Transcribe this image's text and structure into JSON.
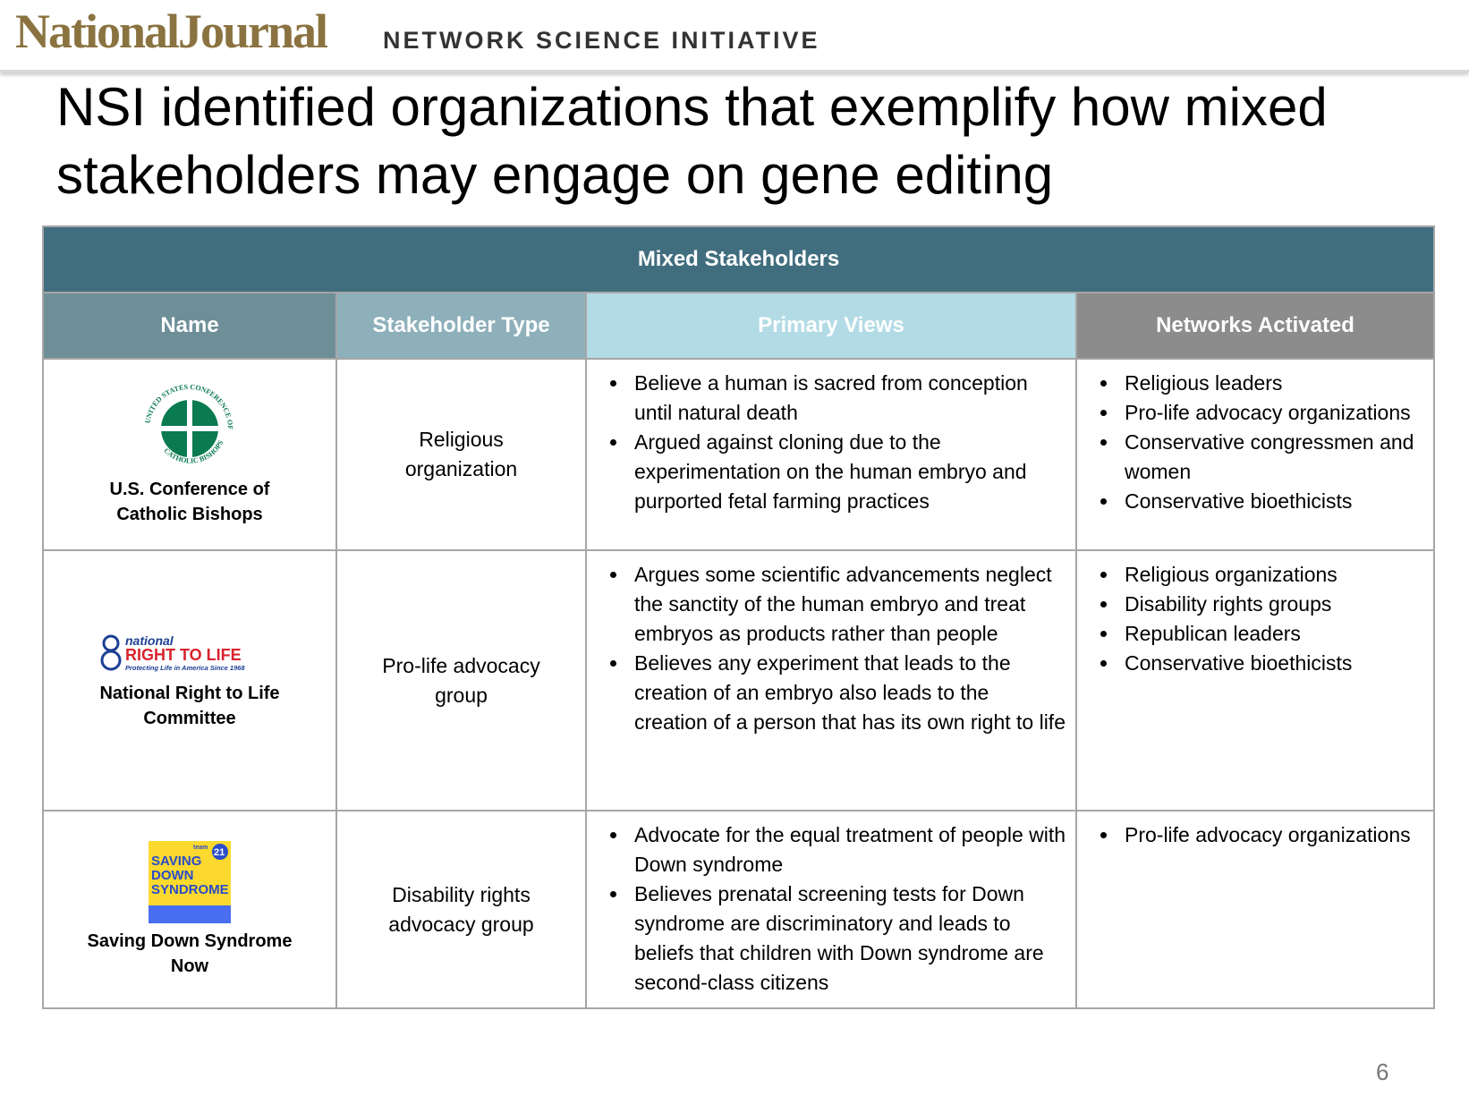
{
  "header": {
    "brand": "NationalJournal",
    "initiative": "NETWORK SCIENCE INITIATIVE"
  },
  "title": "NSI identified organizations that exemplify how mixed stakeholders may engage on gene editing",
  "table": {
    "caption": "Mixed Stakeholders",
    "columns": [
      "Name",
      "Stakeholder Type",
      "Primary Views",
      "Networks Activated"
    ],
    "rows": [
      {
        "logo": [
          "UNITED STATES CONFERENCE OF",
          "CATHOLIC BISHOPS"
        ],
        "name": "U.S. Conference of Catholic Bishops",
        "type": "Religious organization",
        "views": [
          "Believe a human is sacred from conception until natural death",
          "Argued against cloning due to the experimentation on the human embryo and purported fetal farming practices"
        ],
        "networks": [
          "Religious leaders",
          "Pro-life advocacy organizations",
          "Conservative congressmen and women",
          "Conservative bioethicists"
        ]
      },
      {
        "logo": [
          "national",
          "RIGHT TO LIFE",
          "Protecting Life in America Since 1968"
        ],
        "name": "National Right to Life Committee",
        "type": "Pro-life advocacy group",
        "views": [
          "Argues some scientific advancements neglect the sanctity of the human embryo and treat embryos as products rather than people",
          "Believes any experiment that leads to the creation of an embryo also leads to the creation of a person that has its own right to life"
        ],
        "networks": [
          "Religious organizations",
          "Disability rights groups",
          "Republican leaders",
          "Conservative bioethicists"
        ]
      },
      {
        "logo": [
          "team",
          "21",
          "SAVING",
          "DOWN",
          "SYNDROME"
        ],
        "name": "Saving Down Syndrome Now",
        "type": "Disability rights advocacy group",
        "views": [
          "Advocate for the equal treatment of people with Down syndrome",
          "Believes prenatal screening tests for Down syndrome are discriminatory and leads to beliefs that children with Down syndrome are second-class citizens"
        ],
        "networks": [
          "Pro-life advocacy organizations"
        ]
      }
    ]
  },
  "page_number": "6"
}
